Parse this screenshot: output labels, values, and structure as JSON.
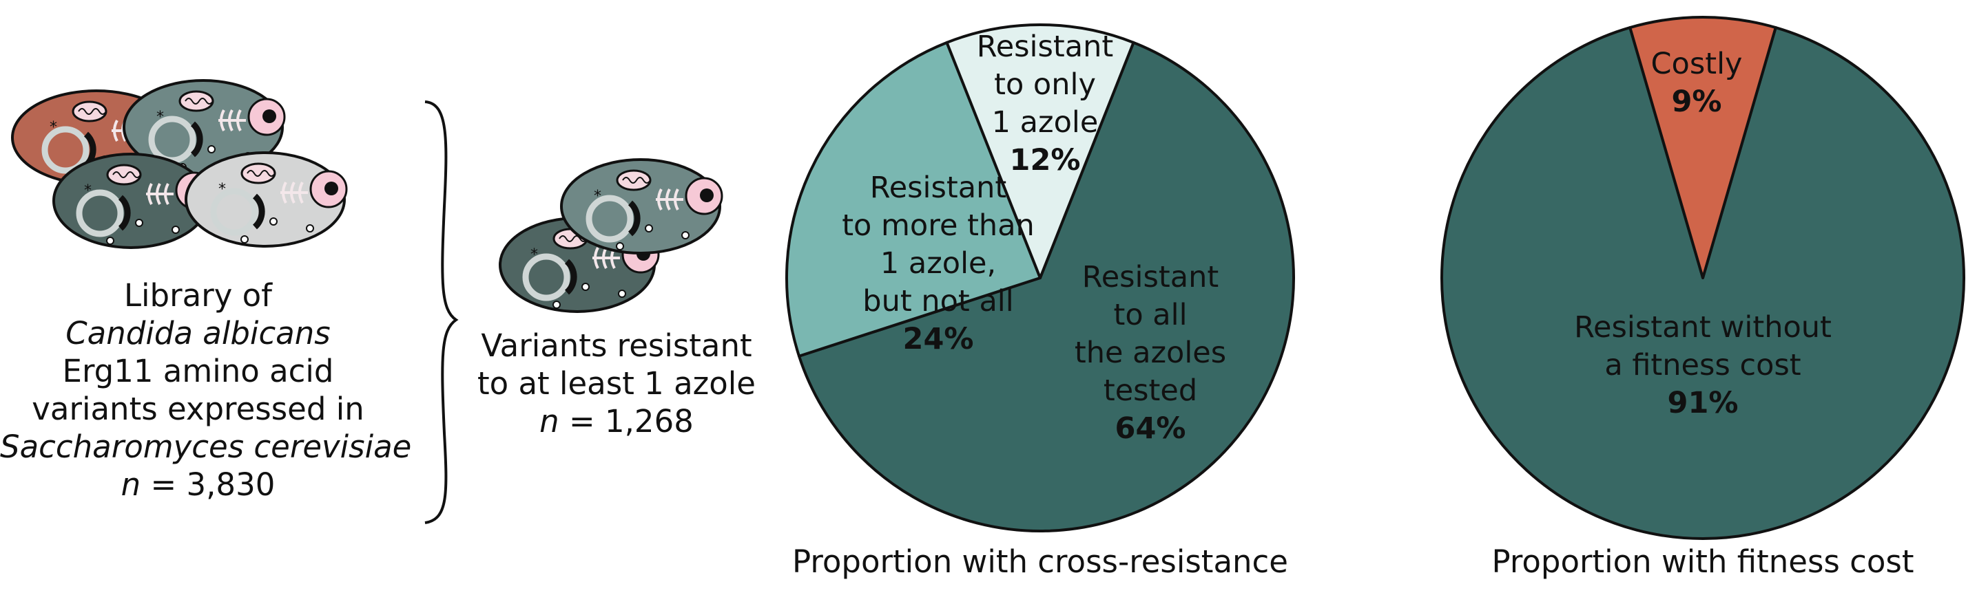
{
  "library": {
    "line1": "Library of",
    "line2": "Candida albicans",
    "line3": "Erg11 amino acid",
    "line4": "variants expressed in",
    "line5": "Saccharomyces cerevisiae",
    "n_symbol": "n",
    "n_value": " = 3,830"
  },
  "variants": {
    "line1": "Variants resistant",
    "line2": "to at least 1 azole",
    "n_symbol": "n",
    "n_value": " = 1,268"
  },
  "colors": {
    "dark_teal": "#386864",
    "mid_teal": "#7ab7b1",
    "light_teal": "#e2f1ef",
    "costly_orange": "#d0654a"
  },
  "chart_data": [
    {
      "type": "pie",
      "title": "Proportion with cross-resistance",
      "slices": [
        {
          "label": [
            "Resistant",
            "to all",
            "the azoles",
            "tested"
          ],
          "value": 64,
          "display": "64%",
          "color": "#386864"
        },
        {
          "label": [
            "Resistant",
            "to more than",
            "1 azole,",
            "but not all"
          ],
          "value": 24,
          "display": "24%",
          "color": "#7ab7b1"
        },
        {
          "label": [
            "Resistant",
            "to only",
            "1 azole"
          ],
          "value": 12,
          "display": "12%",
          "color": "#e2f1ef"
        }
      ]
    },
    {
      "type": "pie",
      "title": "Proportion with fitness cost",
      "slices": [
        {
          "label": [
            "Resistant without",
            "a fitness cost"
          ],
          "value": 91,
          "display": "91%",
          "color": "#386864"
        },
        {
          "label": [
            "Costly"
          ],
          "value": 9,
          "display": "9%",
          "color": "#d0654a"
        }
      ]
    }
  ]
}
